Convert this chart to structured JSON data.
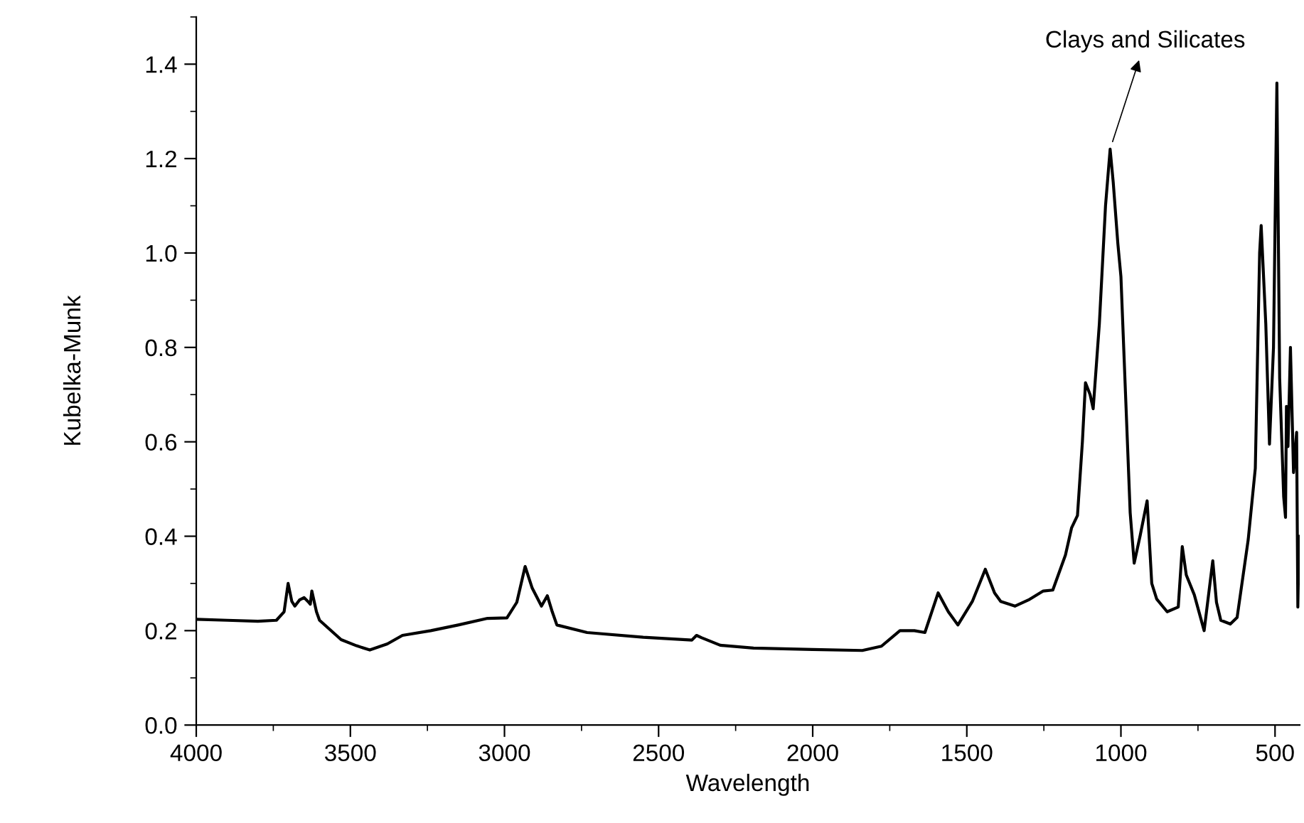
{
  "chart_data": {
    "type": "line",
    "xlabel": "Wavelength",
    "ylabel": "Kubelka-Munk",
    "xlim": [
      4000,
      420
    ],
    "ylim": [
      0,
      1.5
    ],
    "xticks": [
      4000,
      3500,
      3000,
      2500,
      2000,
      1500,
      1000,
      500
    ],
    "yticks": [
      {
        "value": 0,
        "label": "0.0"
      },
      {
        "value": 0.2,
        "label": "0.2"
      },
      {
        "value": 0.4,
        "label": "0.4"
      },
      {
        "value": 0.6,
        "label": "0.6"
      },
      {
        "value": 0.8,
        "label": "0.8"
      },
      {
        "value": 1.0,
        "label": "1.0"
      },
      {
        "value": 1.2,
        "label": "1.2"
      },
      {
        "value": 1.4,
        "label": "1.4"
      }
    ],
    "grid": false,
    "legend": false,
    "marker": "none",
    "line_style": "solid",
    "x": [
      4000,
      3900,
      3800,
      3740,
      3715,
      3702,
      3690,
      3680,
      3665,
      3650,
      3635,
      3630,
      3625,
      3610,
      3600,
      3530,
      3480,
      3437,
      3380,
      3331,
      3239,
      3150,
      3055,
      2992,
      2960,
      2933,
      2910,
      2880,
      2861,
      2845,
      2830,
      2732,
      2550,
      2392,
      2377,
      2360,
      2300,
      2192,
      2000,
      1839,
      1777,
      1717,
      1670,
      1636,
      1593,
      1560,
      1529,
      1482,
      1440,
      1410,
      1390,
      1344,
      1300,
      1252,
      1221,
      1180,
      1160,
      1141,
      1125,
      1115,
      1100,
      1090,
      1070,
      1050,
      1035,
      1025,
      1010,
      1000,
      985,
      970,
      957,
      938,
      915,
      900,
      884,
      850,
      814,
      801,
      788,
      762,
      730,
      702,
      690,
      676,
      645,
      623,
      587,
      564,
      550,
      545,
      530,
      518,
      505,
      494,
      485,
      472,
      466,
      463,
      458,
      450,
      440,
      430,
      426,
      422
    ],
    "values": [
      0.224,
      0.222,
      0.22,
      0.222,
      0.24,
      0.3,
      0.262,
      0.252,
      0.265,
      0.27,
      0.26,
      0.256,
      0.284,
      0.24,
      0.222,
      0.181,
      0.168,
      0.159,
      0.172,
      0.19,
      0.2,
      0.212,
      0.226,
      0.227,
      0.26,
      0.336,
      0.29,
      0.252,
      0.274,
      0.24,
      0.212,
      0.196,
      0.186,
      0.18,
      0.19,
      0.185,
      0.169,
      0.163,
      0.16,
      0.158,
      0.167,
      0.2,
      0.2,
      0.196,
      0.28,
      0.24,
      0.212,
      0.262,
      0.33,
      0.28,
      0.262,
      0.252,
      0.265,
      0.284,
      0.286,
      0.36,
      0.418,
      0.444,
      0.6,
      0.725,
      0.7,
      0.67,
      0.85,
      1.1,
      1.22,
      1.15,
      1.02,
      0.95,
      0.7,
      0.45,
      0.343,
      0.4,
      0.475,
      0.3,
      0.267,
      0.24,
      0.25,
      0.378,
      0.318,
      0.276,
      0.2,
      0.348,
      0.26,
      0.222,
      0.214,
      0.228,
      0.393,
      0.544,
      1.0,
      1.058,
      0.85,
      0.595,
      0.8,
      1.36,
      0.735,
      0.484,
      0.44,
      0.675,
      0.59,
      0.8,
      0.535,
      0.62,
      0.25,
      0.4
    ],
    "color": "#000000",
    "annotations": [
      {
        "text": "Clays and Silicates",
        "x": 1035,
        "y": 1.22
      }
    ]
  }
}
